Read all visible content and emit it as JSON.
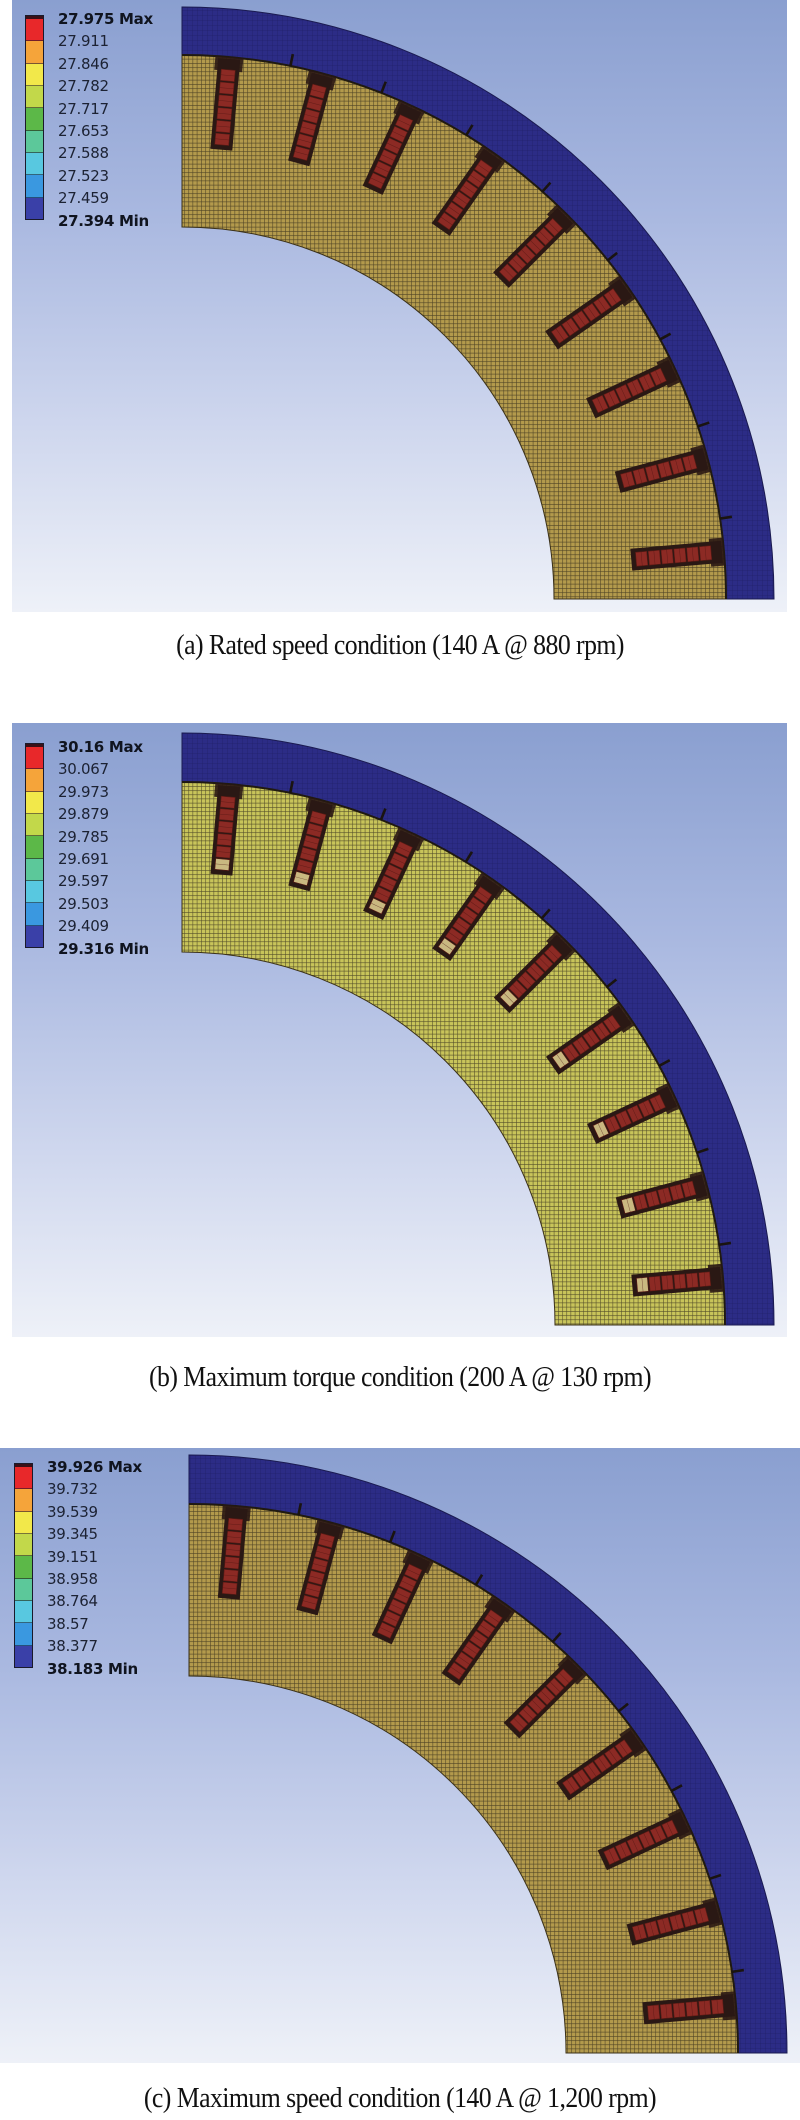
{
  "figure": {
    "colormap": [
      "#e8282a",
      "#f5a43a",
      "#f2e84a",
      "#c2d84a",
      "#5cb848",
      "#5cc89a",
      "#58c8e0",
      "#3a98e0",
      "#3a40a8"
    ],
    "material_colors": {
      "housing_blue": "#2c2c86",
      "stator_a": "#b39a4c",
      "stator_b": "#c8c45a",
      "stator_c": "#b39a4c",
      "coil_red": "#8c2a24",
      "coil_border": "#2a1814",
      "coil_tip_b": "#c9b880",
      "mesh_line": "#2a2416"
    },
    "panels": [
      {
        "id": "a",
        "legend": {
          "labels": [
            "27.975 Max",
            "27.911",
            "27.846",
            "27.782",
            "27.717",
            "27.653",
            "27.588",
            "27.523",
            "27.459",
            "27.394 Min"
          ]
        },
        "caption": "(a) Rated speed condition (140 A @ 880 rpm)"
      },
      {
        "id": "b",
        "legend": {
          "labels": [
            "30.16 Max",
            "30.067",
            "29.973",
            "29.879",
            "29.785",
            "29.691",
            "29.597",
            "29.503",
            "29.409",
            "29.316 Min"
          ]
        },
        "caption": "(b) Maximum torque condition (200 A @ 130 rpm)"
      },
      {
        "id": "c",
        "legend": {
          "labels": [
            "39.926 Max",
            "39.732",
            "39.539",
            "39.345",
            "39.151",
            "38.958",
            "38.764",
            "38.57",
            "38.377",
            "38.183 Min"
          ]
        },
        "caption": "(c) Maximum speed condition (140 A @ 1,200 rpm)"
      }
    ]
  }
}
